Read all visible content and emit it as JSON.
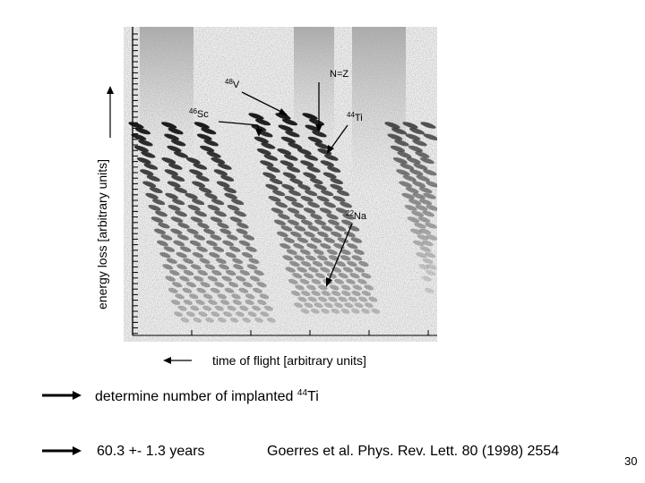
{
  "figure": {
    "y_axis_label": "energy loss [arbitrary units]",
    "x_axis_label": "time of flight [arbitrary units]",
    "annotations": {
      "v48": {
        "mass": "48",
        "symbol": "V"
      },
      "sc46": {
        "mass": "46",
        "symbol": "Sc"
      },
      "nz": {
        "text": "N=Z"
      },
      "ti44": {
        "mass": "44",
        "symbol": "Ti"
      },
      "na22": {
        "mass": "22",
        "symbol": "Na"
      }
    }
  },
  "bullets": [
    {
      "text": "determine number of implanted ",
      "sup": "44",
      "tail": "Ti"
    },
    {
      "text": "60.3 +- 1.3 years"
    }
  ],
  "reference": "Goerres et al. Phys. Rev. Lett. 80 (1998) 2554",
  "page_number": "30"
}
